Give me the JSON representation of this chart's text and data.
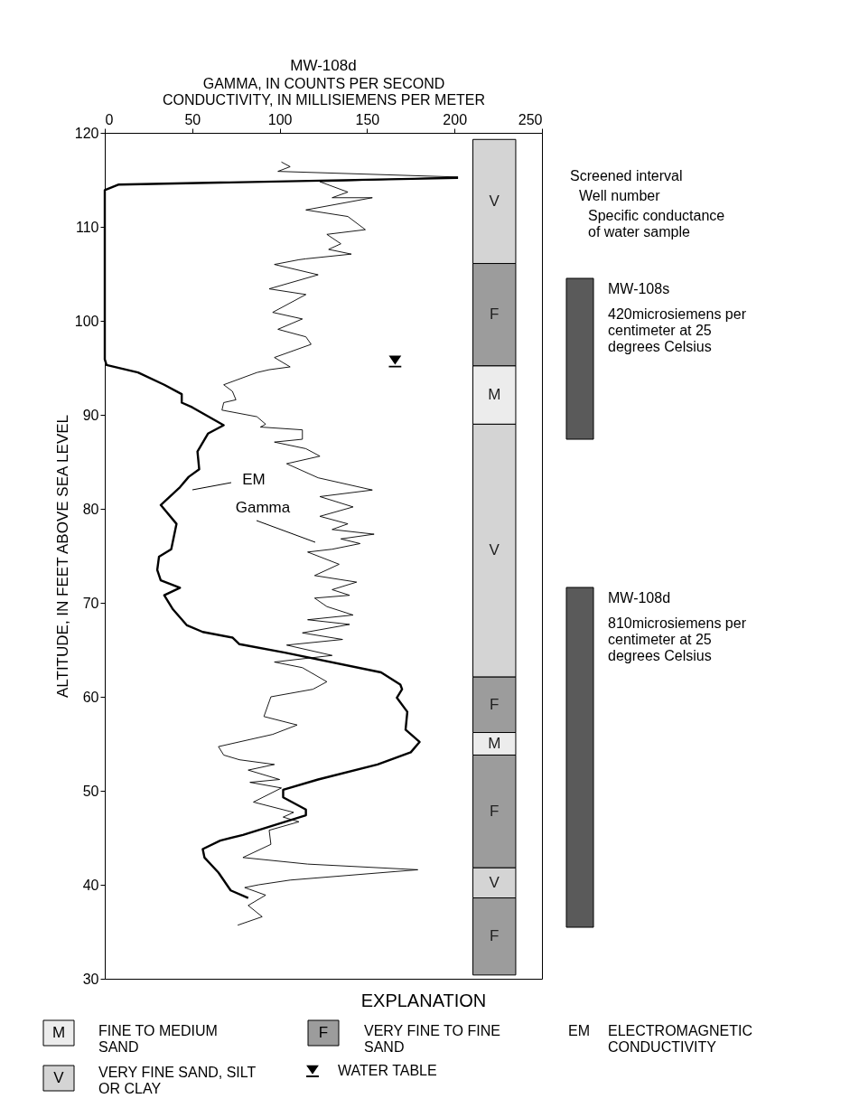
{
  "chart_data": {
    "type": "line",
    "title": "MW-108d",
    "xlabel": "GAMMA, IN COUNTS PER SECOND\nCONDUCTIVITY, IN MILLISIEMENS PER METER",
    "ylabel": "ALTITUDE, IN FEET ABOVE SEA LEVEL",
    "xlim": [
      0,
      250
    ],
    "xticks": [
      0,
      50,
      100,
      150,
      200,
      250
    ],
    "ylim": [
      30,
      120
    ],
    "yticks": [
      30,
      40,
      50,
      60,
      70,
      80,
      90,
      100,
      110,
      120
    ],
    "grid": false,
    "legend": "bottom",
    "line_style": "solid",
    "series": [
      {
        "color": "#000000",
        "x": [
          202,
          8,
          0,
          0,
          1,
          19,
          34,
          44,
          44,
          50,
          68,
          59,
          53,
          54,
          48,
          43,
          32,
          41,
          38,
          31,
          30,
          32,
          43,
          34,
          39,
          47,
          56,
          73,
          77,
          103,
          158,
          169,
          170,
          167,
          173,
          172,
          180,
          175,
          156,
          122,
          102,
          102,
          115,
          115,
          79,
          66,
          56,
          57,
          65,
          72,
          82
        ],
        "values": [
          115.2,
          114.5,
          113.9,
          95.9,
          95.3,
          94.5,
          93.2,
          92.2,
          91.3,
          90.8,
          88.9,
          88.0,
          86.1,
          84.2,
          83.4,
          82.3,
          80.4,
          78.4,
          75.7,
          74.9,
          73.5,
          72.4,
          71.6,
          70.8,
          69.3,
          67.6,
          66.9,
          66.3,
          65.6,
          64.7,
          62.6,
          61.3,
          60.8,
          59.9,
          58.4,
          56.5,
          55.2,
          54.1,
          52.8,
          51.2,
          50.1,
          49.3,
          48.0,
          47.4,
          45.3,
          44.7,
          43.8,
          42.9,
          41.3,
          39.4,
          38.6
        ]
      },
      {
        "color": "#000000",
        "x": [
          101,
          106,
          99,
          202,
          123,
          139,
          130,
          153,
          115,
          139,
          149,
          127,
          135,
          128,
          141,
          115,
          111,
          97,
          122,
          94,
          115,
          96,
          113,
          99,
          115,
          118,
          97,
          106,
          94,
          87,
          68,
          73,
          75,
          68,
          67,
          87,
          92,
          89,
          113,
          113,
          97,
          115,
          123,
          104,
          122,
          153,
          123,
          142,
          123,
          139,
          130,
          154,
          135,
          146,
          130,
          116,
          134,
          120,
          144,
          130,
          140,
          120,
          127,
          142,
          116,
          140,
          113,
          136,
          104,
          130,
          97,
          113,
          127,
          119,
          95,
          91,
          110,
          96,
          65,
          68,
          77,
          97,
          82,
          100,
          83,
          101,
          85,
          108,
          102,
          111,
          94,
          95,
          79,
          116,
          179,
          106,
          88,
          80,
          92,
          82,
          90,
          76
        ],
        "values": [
          116.9,
          116.4,
          115.9,
          115.3,
          114.8,
          113.7,
          113.1,
          113.1,
          111.8,
          111.1,
          109.7,
          109.2,
          108.2,
          107.6,
          107.1,
          106.6,
          106.5,
          106.0,
          104.9,
          103.4,
          102.8,
          100.9,
          100.2,
          99.1,
          98.3,
          97.5,
          96.1,
          95.1,
          94.8,
          94.5,
          93.2,
          92.5,
          91.6,
          91.3,
          90.5,
          89.8,
          89.0,
          88.7,
          88.4,
          87.4,
          87.1,
          86.4,
          85.6,
          84.8,
          83.3,
          82.0,
          81.3,
          80.2,
          79.2,
          78.4,
          77.8,
          77.3,
          76.8,
          76.3,
          75.7,
          75.4,
          74.1,
          72.9,
          72.2,
          71.4,
          70.8,
          70.5,
          69.6,
          68.7,
          68.2,
          67.7,
          66.8,
          66.1,
          65.5,
          64.4,
          63.7,
          63.1,
          61.6,
          60.8,
          60.0,
          57.9,
          57.0,
          56.0,
          54.7,
          53.8,
          53.3,
          52.8,
          52.2,
          51.2,
          50.9,
          50.3,
          48.8,
          47.7,
          47.2,
          46.7,
          45.8,
          44.3,
          42.9,
          42.2,
          41.6,
          40.5,
          40.0,
          39.7,
          38.9,
          37.8,
          36.6,
          35.7
        ]
      },
      {
        "type": "scatter",
        "name": "WATER TABLE",
        "color": "#000000",
        "marker": "triangle",
        "x": [
          166
        ],
        "values": [
          95.7
        ]
      }
    ],
    "bands": [
      {
        "axis": "y",
        "from": 106.1,
        "to": 119.3,
        "label": "V",
        "color": "#d4d4d4"
      },
      {
        "axis": "y",
        "from": 95.2,
        "to": 106.1,
        "label": "F",
        "color": "#9c9c9c"
      },
      {
        "axis": "y",
        "from": 89.0,
        "to": 95.2,
        "label": "M",
        "color": "#ececec"
      },
      {
        "axis": "y",
        "from": 62.1,
        "to": 89.0,
        "label": "V",
        "color": "#d4d4d4"
      },
      {
        "axis": "y",
        "from": 56.2,
        "to": 62.1,
        "label": "F",
        "color": "#9c9c9c"
      },
      {
        "axis": "y",
        "from": 53.8,
        "to": 56.2,
        "label": "M",
        "color": "#ececec"
      },
      {
        "axis": "y",
        "from": 41.8,
        "to": 53.8,
        "label": "F",
        "color": "#9c9c9c"
      },
      {
        "axis": "y",
        "from": 38.6,
        "to": 41.8,
        "label": "V",
        "color": "#d4d4d4"
      },
      {
        "axis": "y",
        "from": 30.4,
        "to": 38.6,
        "label": "F",
        "color": "#9c9c9c"
      }
    ],
    "annotations": [
      "EM",
      "Gamma",
      "EXPLANATION",
      "FINE TO MEDIUM SAND",
      "VERY FINE TO FINE SAND",
      "VERY FINE SAND, SILT OR CLAY",
      "EM",
      "ELECTROMAGNETIC CONDUCTIVITY",
      "Screened interval",
      "Well number",
      "Specific conductance of water sample",
      "MW-108s",
      "420microsiemens per centimeter at 25 degrees Celsius",
      "MW-108d",
      "810microsiemens per centimeter at 25 degrees Celsius"
    ]
  }
}
